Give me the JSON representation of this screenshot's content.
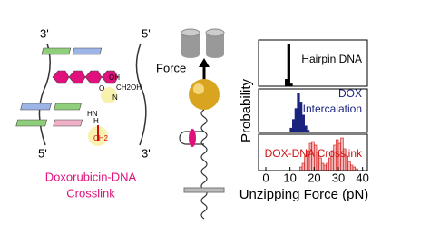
{
  "diagram": {
    "strand_ends": [
      "3'",
      "5'",
      "5'",
      "3'"
    ],
    "chem_labels": [
      "OH",
      "CH2OH",
      "O",
      "N",
      "HN",
      "H",
      "CH2"
    ],
    "caption": [
      "Doxorubicin-DNA",
      "Crosslink"
    ],
    "force_label": "Force"
  },
  "chart_data": [
    {
      "type": "histogram",
      "title": "Hairpin DNA",
      "color": "#000000",
      "bins": [
        8,
        9,
        10,
        11
      ],
      "values": [
        0.15,
        0.9,
        0.05
      ],
      "xlim": [
        -3,
        42
      ],
      "ylim": [
        0,
        1
      ]
    },
    {
      "type": "histogram",
      "title": [
        "DOX",
        "Intercalation"
      ],
      "color": "#1a237e",
      "bins": [
        10,
        11,
        12,
        13,
        14,
        15,
        16,
        17,
        18
      ],
      "values": [
        0.1,
        0.3,
        0.55,
        0.9,
        0.7,
        0.4,
        0.15,
        0.05
      ],
      "xlim": [
        -3,
        42
      ],
      "ylim": [
        0,
        1
      ],
      "ylabel": "Probability"
    },
    {
      "type": "histogram",
      "title": "DOX-DNA Crosslink",
      "color": "#d01010",
      "fill": "#f4b4b4",
      "bins": [
        14,
        15,
        16,
        17,
        18,
        19,
        20,
        21,
        22,
        23,
        24,
        25,
        26,
        27,
        28,
        29,
        30,
        31,
        32,
        33,
        34,
        35,
        36,
        37,
        38
      ],
      "values": [
        0.1,
        0.2,
        0.4,
        0.55,
        0.75,
        0.8,
        0.7,
        0.5,
        0.35,
        0.2,
        0.15,
        0.2,
        0.35,
        0.55,
        0.7,
        0.85,
        0.75,
        0.9,
        0.6,
        0.4,
        0.25,
        0.15,
        0.1,
        0.05
      ],
      "xlim": [
        -3,
        42
      ],
      "ylim": [
        0,
        1
      ],
      "xticks": [
        0,
        10,
        20,
        30,
        40
      ],
      "xlabel": "Unzipping Force (pN)"
    }
  ]
}
